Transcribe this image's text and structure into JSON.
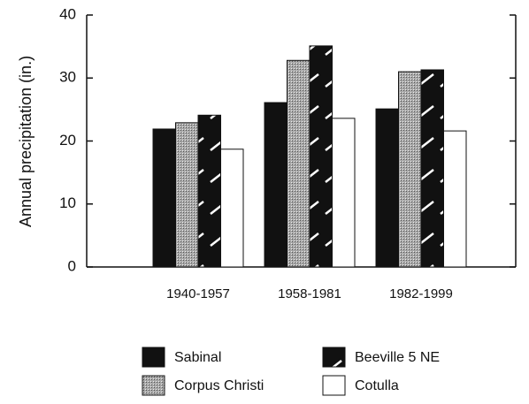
{
  "chart_data": {
    "type": "bar",
    "y_label": "Annual precipitation (in.)",
    "categories": [
      "1940-1957",
      "1958-1981",
      "1982-1999"
    ],
    "series": [
      {
        "name": "Sabinal",
        "color": "#111111",
        "pattern": "solid",
        "values": [
          21.9,
          26.1,
          25.1
        ]
      },
      {
        "name": "Corpus Christi",
        "color": "#a8a8a8",
        "pattern": "stipple",
        "values": [
          22.9,
          32.8,
          31.0
        ]
      },
      {
        "name": "Beeville 5 NE",
        "color": "#111111",
        "pattern": "slash",
        "values": [
          24.1,
          35.1,
          31.3
        ]
      },
      {
        "name": "Cotulla",
        "color": "#ffffff",
        "pattern": "solid",
        "values": [
          18.7,
          23.6,
          21.6
        ]
      }
    ],
    "ylim": [
      0,
      40
    ],
    "yticks": [
      0,
      10,
      20,
      30,
      40
    ]
  }
}
